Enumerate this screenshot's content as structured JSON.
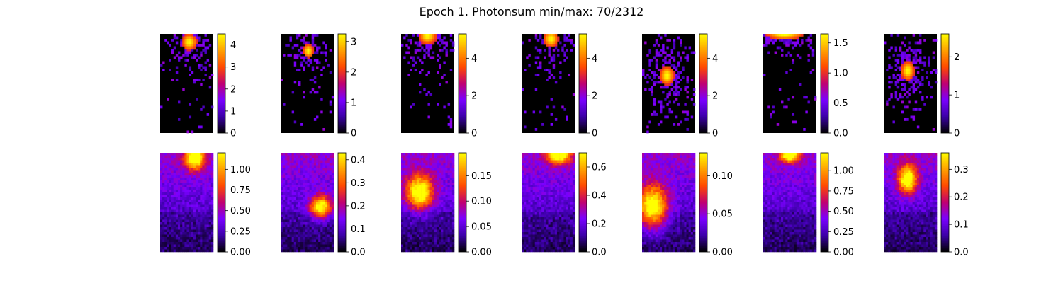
{
  "title": "Epoch 1. Photonsum min/max: 70/2312",
  "colormap": "gnuplot",
  "colors": {
    "background": "#ffffff",
    "cmap_stops": [
      "#000000",
      "#3c00a8",
      "#7a00ff",
      "#c00070",
      "#ff4a00",
      "#ffa000",
      "#ffff00"
    ]
  },
  "chart_data": [
    {
      "type": "heatmap",
      "row": "top",
      "col": 1,
      "grid": [
        24,
        40
      ],
      "hotspot": [
        0.55,
        0.08
      ],
      "spread": [
        0.1,
        0.06
      ],
      "sparse": true,
      "colorbar": {
        "ticks": [
          "0",
          "1",
          "2",
          "3",
          "4"
        ],
        "values": [
          0,
          1,
          2,
          3,
          4
        ],
        "range": [
          0,
          4.5
        ]
      }
    },
    {
      "type": "heatmap",
      "row": "top",
      "col": 2,
      "grid": [
        24,
        40
      ],
      "hotspot": [
        0.52,
        0.17
      ],
      "spread": [
        0.07,
        0.05
      ],
      "sparse": true,
      "colorbar": {
        "ticks": [
          "0",
          "1",
          "2",
          "3"
        ],
        "values": [
          0,
          1,
          2,
          3
        ],
        "range": [
          0,
          3.25
        ]
      }
    },
    {
      "type": "heatmap",
      "row": "top",
      "col": 3,
      "grid": [
        24,
        40
      ],
      "hotspot": [
        0.5,
        0.02
      ],
      "spread": [
        0.12,
        0.06
      ],
      "sparse": true,
      "colorbar": {
        "ticks": [
          "0",
          "2",
          "4"
        ],
        "values": [
          0,
          2,
          4
        ],
        "range": [
          0,
          5.3
        ]
      }
    },
    {
      "type": "heatmap",
      "row": "top",
      "col": 4,
      "grid": [
        24,
        40
      ],
      "hotspot": [
        0.55,
        0.05
      ],
      "spread": [
        0.1,
        0.06
      ],
      "sparse": true,
      "colorbar": {
        "ticks": [
          "0",
          "2",
          "4"
        ],
        "values": [
          0,
          2,
          4
        ],
        "range": [
          0,
          5.3
        ]
      }
    },
    {
      "type": "heatmap",
      "row": "top",
      "col": 5,
      "grid": [
        24,
        40
      ],
      "hotspot": [
        0.47,
        0.42
      ],
      "spread": [
        0.1,
        0.07
      ],
      "sparse": true,
      "colorbar": {
        "ticks": [
          "0",
          "2",
          "4"
        ],
        "values": [
          0,
          2,
          4
        ],
        "range": [
          0,
          5.3
        ]
      }
    },
    {
      "type": "heatmap",
      "row": "top",
      "col": 6,
      "grid": [
        24,
        40
      ],
      "hotspot": [
        0.4,
        0.01
      ],
      "spread": [
        0.25,
        0.03
      ],
      "sparse": true,
      "colorbar": {
        "ticks": [
          "0.0",
          "0.5",
          "1.0",
          "1.5"
        ],
        "values": [
          0,
          0.5,
          1.0,
          1.5
        ],
        "range": [
          0,
          1.65
        ]
      }
    },
    {
      "type": "heatmap",
      "row": "top",
      "col": 7,
      "grid": [
        24,
        40
      ],
      "hotspot": [
        0.45,
        0.37
      ],
      "spread": [
        0.09,
        0.07
      ],
      "sparse": true,
      "colorbar": {
        "ticks": [
          "0",
          "1",
          "2"
        ],
        "values": [
          0,
          1,
          2
        ],
        "range": [
          0,
          2.6
        ]
      }
    },
    {
      "type": "heatmap",
      "row": "bottom",
      "col": 1,
      "grid": [
        24,
        40
      ],
      "hotspot": [
        0.65,
        0.05
      ],
      "spread": [
        0.12,
        0.08
      ],
      "sparse": false,
      "colorbar": {
        "ticks": [
          "0.00",
          "0.25",
          "0.50",
          "0.75",
          "1.00"
        ],
        "values": [
          0,
          0.25,
          0.5,
          0.75,
          1.0
        ],
        "range": [
          0,
          1.2
        ]
      }
    },
    {
      "type": "heatmap",
      "row": "bottom",
      "col": 2,
      "grid": [
        24,
        40
      ],
      "hotspot": [
        0.75,
        0.55
      ],
      "spread": [
        0.14,
        0.08
      ],
      "sparse": false,
      "colorbar": {
        "ticks": [
          "0.0",
          "0.1",
          "0.2",
          "0.3",
          "0.4"
        ],
        "values": [
          0,
          0.1,
          0.2,
          0.3,
          0.4
        ],
        "range": [
          0,
          0.43
        ]
      }
    },
    {
      "type": "heatmap",
      "row": "bottom",
      "col": 3,
      "grid": [
        24,
        40
      ],
      "hotspot": [
        0.35,
        0.4
      ],
      "spread": [
        0.18,
        0.12
      ],
      "sparse": false,
      "colorbar": {
        "ticks": [
          "0.00",
          "0.05",
          "0.10",
          "0.15"
        ],
        "values": [
          0,
          0.05,
          0.1,
          0.15
        ],
        "range": [
          0,
          0.195
        ]
      }
    },
    {
      "type": "heatmap",
      "row": "bottom",
      "col": 4,
      "grid": [
        24,
        40
      ],
      "hotspot": [
        0.7,
        0.02
      ],
      "spread": [
        0.15,
        0.06
      ],
      "sparse": false,
      "colorbar": {
        "ticks": [
          "0.0",
          "0.2",
          "0.4",
          "0.6"
        ],
        "values": [
          0,
          0.2,
          0.4,
          0.6
        ],
        "range": [
          0,
          0.7
        ]
      }
    },
    {
      "type": "heatmap",
      "row": "bottom",
      "col": 5,
      "grid": [
        24,
        40
      ],
      "hotspot": [
        0.2,
        0.55
      ],
      "spread": [
        0.2,
        0.15
      ],
      "sparse": false,
      "colorbar": {
        "ticks": [
          "0.00",
          "0.05",
          "0.10"
        ],
        "values": [
          0,
          0.05,
          0.1
        ],
        "range": [
          0,
          0.13
        ]
      }
    },
    {
      "type": "heatmap",
      "row": "bottom",
      "col": 6,
      "grid": [
        24,
        40
      ],
      "hotspot": [
        0.5,
        0.02
      ],
      "spread": [
        0.12,
        0.05
      ],
      "sparse": false,
      "colorbar": {
        "ticks": [
          "0.00",
          "0.25",
          "0.50",
          "0.75",
          "1.00"
        ],
        "values": [
          0,
          0.25,
          0.5,
          0.75,
          1.0
        ],
        "range": [
          0,
          1.22
        ]
      }
    },
    {
      "type": "heatmap",
      "row": "bottom",
      "col": 7,
      "grid": [
        24,
        40
      ],
      "hotspot": [
        0.45,
        0.27
      ],
      "spread": [
        0.12,
        0.1
      ],
      "sparse": false,
      "colorbar": {
        "ticks": [
          "0.0",
          "0.1",
          "0.2",
          "0.3"
        ],
        "values": [
          0,
          0.1,
          0.2,
          0.3
        ],
        "range": [
          0,
          0.36
        ]
      }
    }
  ]
}
